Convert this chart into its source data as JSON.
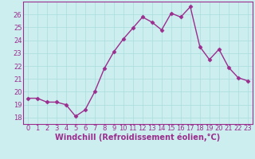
{
  "x": [
    0,
    1,
    2,
    3,
    4,
    5,
    6,
    7,
    8,
    9,
    10,
    11,
    12,
    13,
    14,
    15,
    16,
    17,
    18,
    19,
    20,
    21,
    22,
    23
  ],
  "y": [
    19.5,
    19.5,
    19.2,
    19.2,
    19.0,
    18.1,
    18.6,
    20.0,
    21.8,
    23.1,
    24.1,
    24.95,
    25.8,
    25.4,
    24.8,
    26.1,
    25.8,
    26.6,
    23.5,
    22.5,
    23.3,
    21.9,
    21.1,
    20.85
  ],
  "line_color": "#9B2D8E",
  "marker": "D",
  "marker_size": 2.5,
  "bg_color": "#CCEEEE",
  "grid_color": "#AADDDD",
  "xlabel": "Windchill (Refroidissement éolien,°C)",
  "xlabel_fontsize": 7,
  "ylim": [
    17.5,
    27.0
  ],
  "xlim": [
    -0.5,
    23.5
  ],
  "yticks": [
    18,
    19,
    20,
    21,
    22,
    23,
    24,
    25,
    26
  ],
  "xticks": [
    0,
    1,
    2,
    3,
    4,
    5,
    6,
    7,
    8,
    9,
    10,
    11,
    12,
    13,
    14,
    15,
    16,
    17,
    18,
    19,
    20,
    21,
    22,
    23
  ],
  "tick_fontsize": 6,
  "linewidth": 1.0
}
